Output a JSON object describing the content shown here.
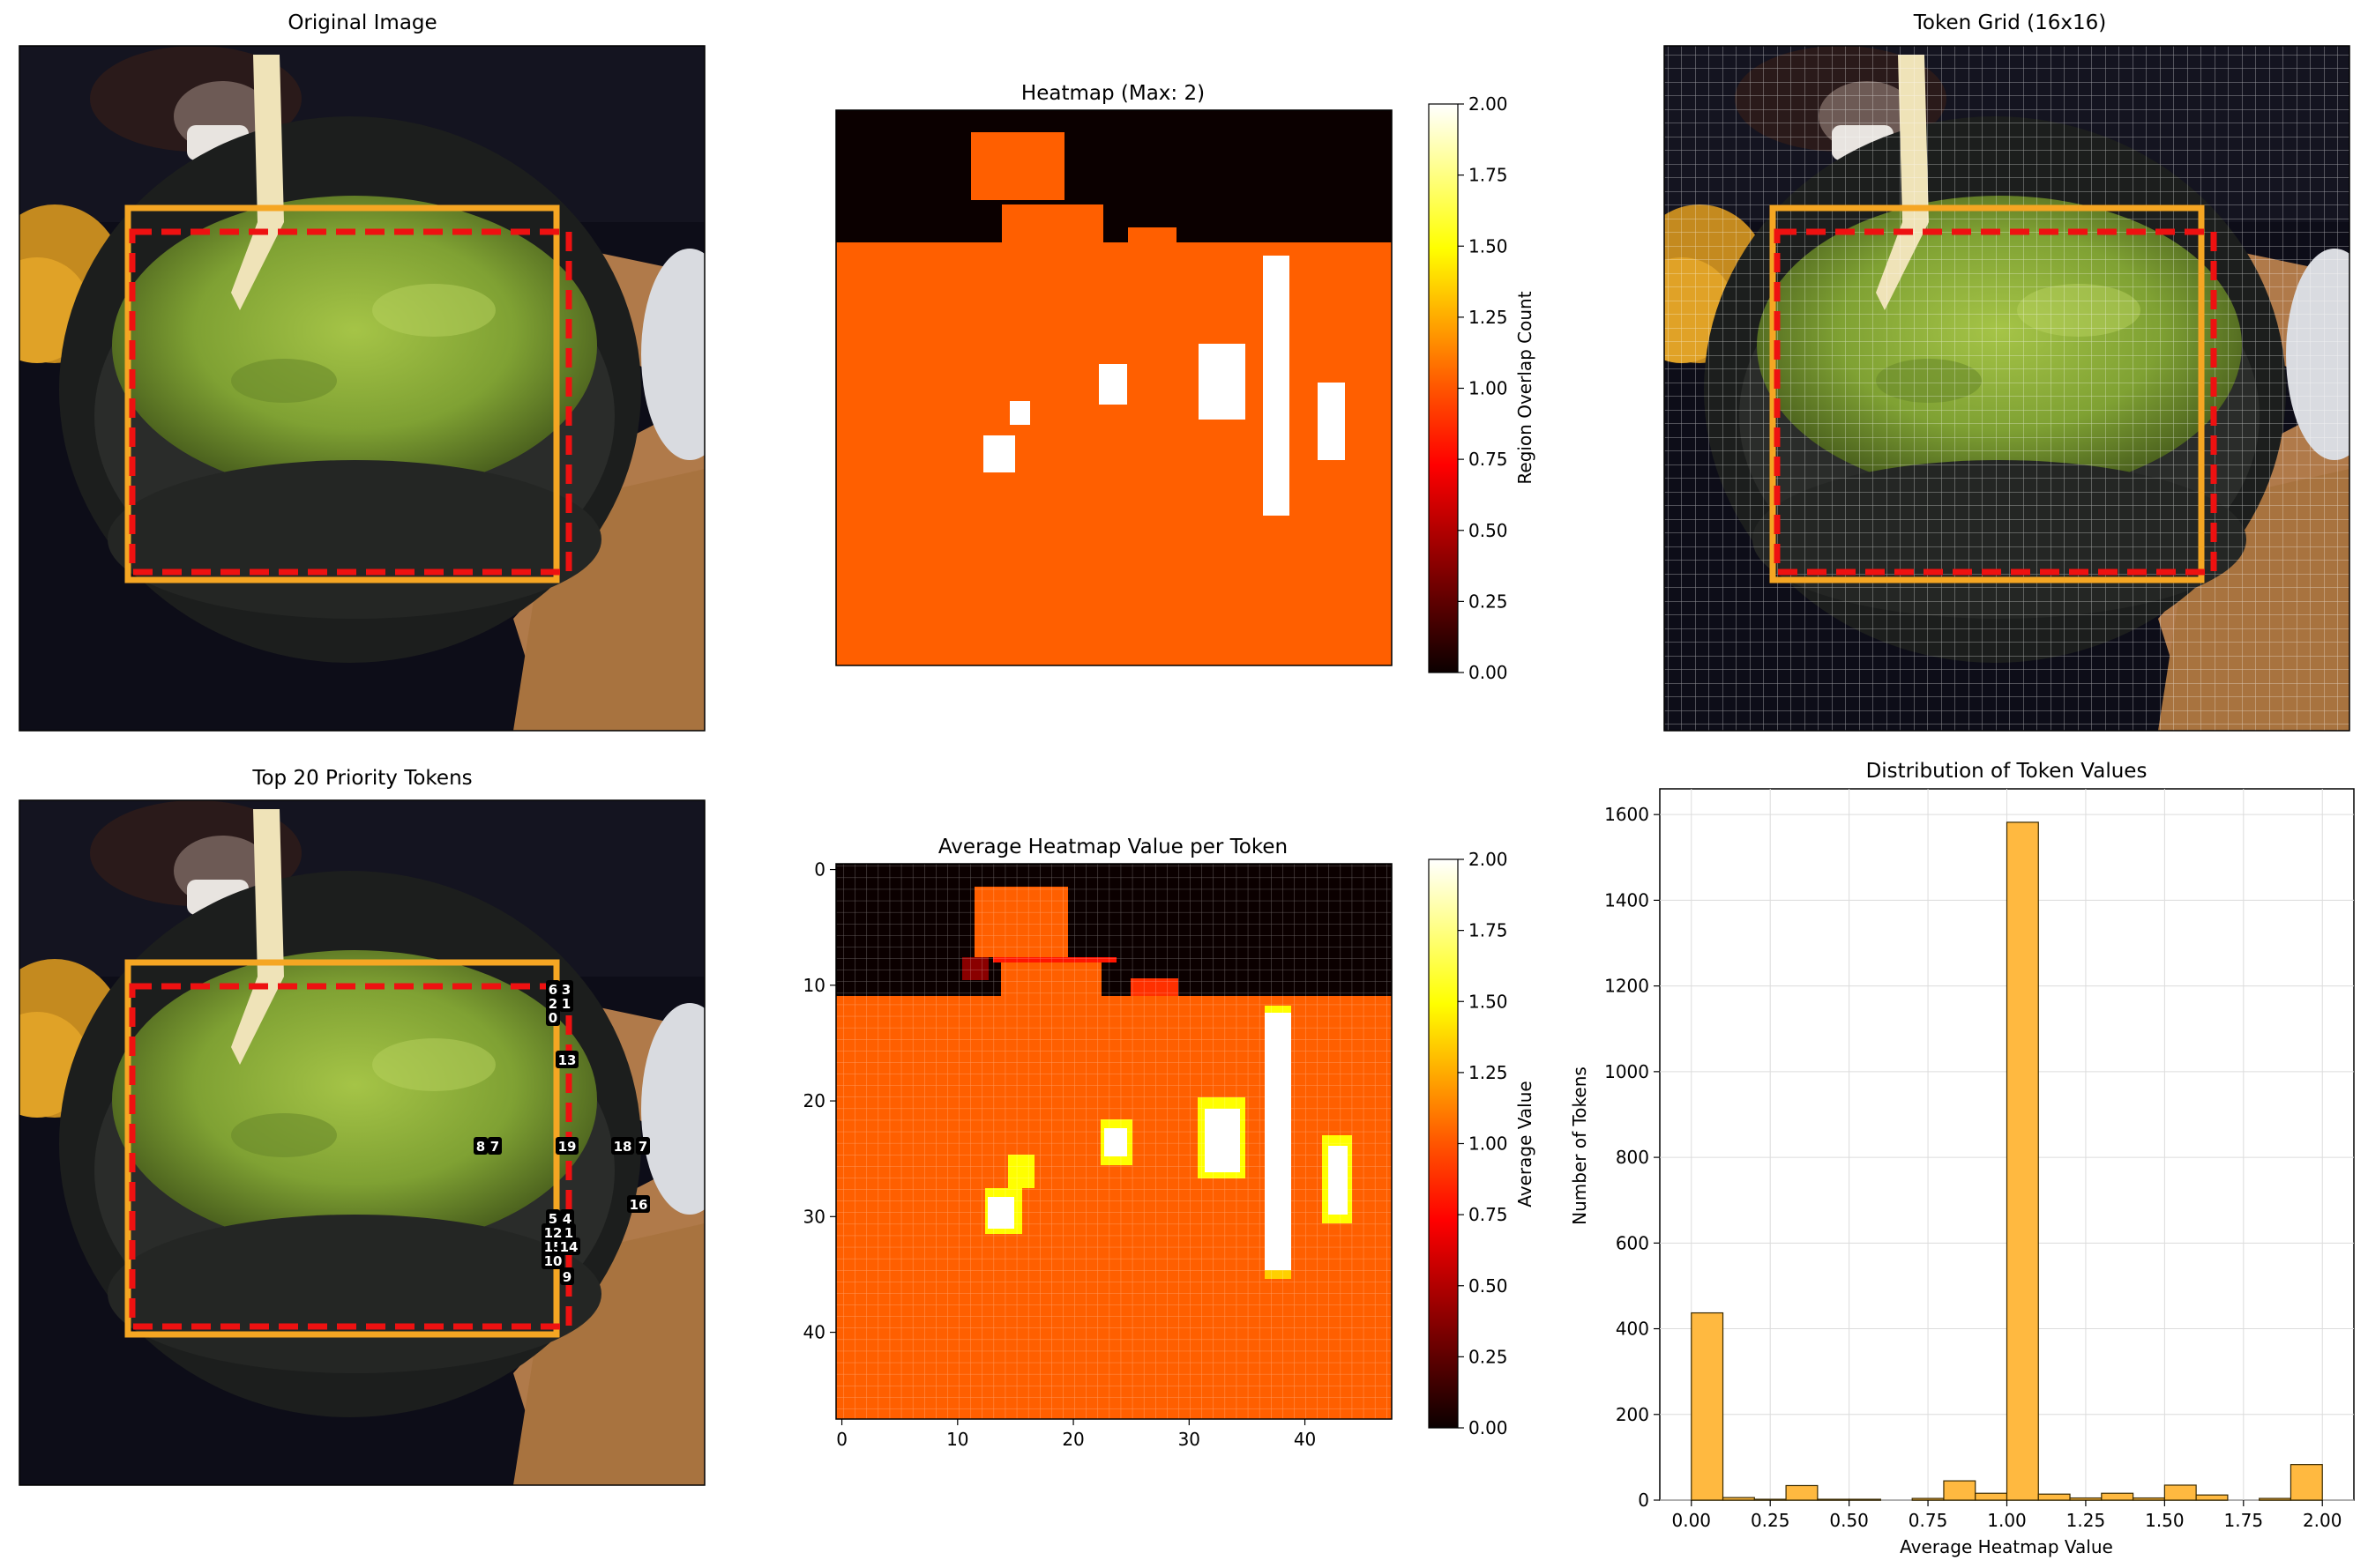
{
  "panels": {
    "original": {
      "title": "Original Image"
    },
    "heatmap": {
      "title": "Heatmap (Max: 2)",
      "colorbar_label": "Region Overlap Count",
      "colorbar_ticks": [
        "0.00",
        "0.25",
        "0.50",
        "0.75",
        "1.00",
        "1.25",
        "1.50",
        "1.75",
        "2.00"
      ]
    },
    "token_grid": {
      "title": "Token Grid (16x16)"
    },
    "top_tokens": {
      "title": "Top 20 Priority Tokens"
    },
    "avg_heatmap": {
      "title": "Average Heatmap Value per Token",
      "colorbar_label": "Average Value",
      "colorbar_ticks": [
        "0.00",
        "0.25",
        "0.50",
        "0.75",
        "1.00",
        "1.25",
        "1.50",
        "1.75",
        "2.00"
      ],
      "x_ticks": [
        "0",
        "10",
        "20",
        "30",
        "40"
      ],
      "y_ticks": [
        "0",
        "10",
        "20",
        "30",
        "40"
      ]
    },
    "distribution": {
      "title": "Distribution of Token Values"
    }
  },
  "token_labels": [
    {
      "text": "6"
    },
    {
      "text": "3"
    },
    {
      "text": "2"
    },
    {
      "text": "1"
    },
    {
      "text": "0"
    },
    {
      "text": "13"
    },
    {
      "text": "8"
    },
    {
      "text": "7"
    },
    {
      "text": "19"
    },
    {
      "text": "18"
    },
    {
      "text": "7"
    },
    {
      "text": "16"
    },
    {
      "text": "5"
    },
    {
      "text": "4"
    },
    {
      "text": "12"
    },
    {
      "text": "1"
    },
    {
      "text": "15"
    },
    {
      "text": "14"
    },
    {
      "text": "10"
    },
    {
      "text": "9"
    }
  ],
  "colors": {
    "bbox_solid": "#f5a623",
    "bbox_dashed": "#ee1111",
    "hist_fill": "#ffb940",
    "hist_edge": "#3a2a00"
  },
  "chart_data": [
    {
      "type": "heatmap",
      "title": "Heatmap (Max: 2)",
      "colorbar_label": "Region Overlap Count",
      "colorbar_range": [
        0,
        2
      ],
      "colormap": "hot",
      "regions_value_2": [
        "five small rectangles and one tall vertical bar in the lower area"
      ],
      "background_value": 1,
      "top_band_value": 0
    },
    {
      "type": "heatmap",
      "title": "Average Heatmap Value per Token",
      "xlabel": "",
      "ylabel": "",
      "grid_size": 48,
      "colorbar_label": "Average Value",
      "colorbar_range": [
        0,
        2
      ],
      "colormap": "hot"
    },
    {
      "type": "bar",
      "title": "Distribution of Token Values",
      "xlabel": "Average Heatmap Value",
      "ylabel": "Number of Tokens",
      "bin_width": 0.1,
      "bin_starts": [
        0.0,
        0.1,
        0.2,
        0.3,
        0.4,
        0.5,
        0.6,
        0.7,
        0.8,
        0.9,
        1.0,
        1.1,
        1.2,
        1.3,
        1.4,
        1.5,
        1.6,
        1.7,
        1.8,
        1.9
      ],
      "values": [
        437,
        6,
        2,
        34,
        2,
        2,
        0,
        4,
        45,
        16,
        1582,
        14,
        5,
        16,
        5,
        35,
        12,
        0,
        4,
        83
      ],
      "x_ticks": [
        "0.00",
        "0.25",
        "0.50",
        "0.75",
        "1.00",
        "1.25",
        "1.50",
        "1.75",
        "2.00"
      ],
      "y_ticks": [
        "0",
        "200",
        "400",
        "600",
        "800",
        "1000",
        "1200",
        "1400",
        "1600"
      ],
      "xlim": [
        -0.1,
        2.1
      ],
      "ylim": [
        0,
        1660
      ],
      "grid": true
    }
  ]
}
